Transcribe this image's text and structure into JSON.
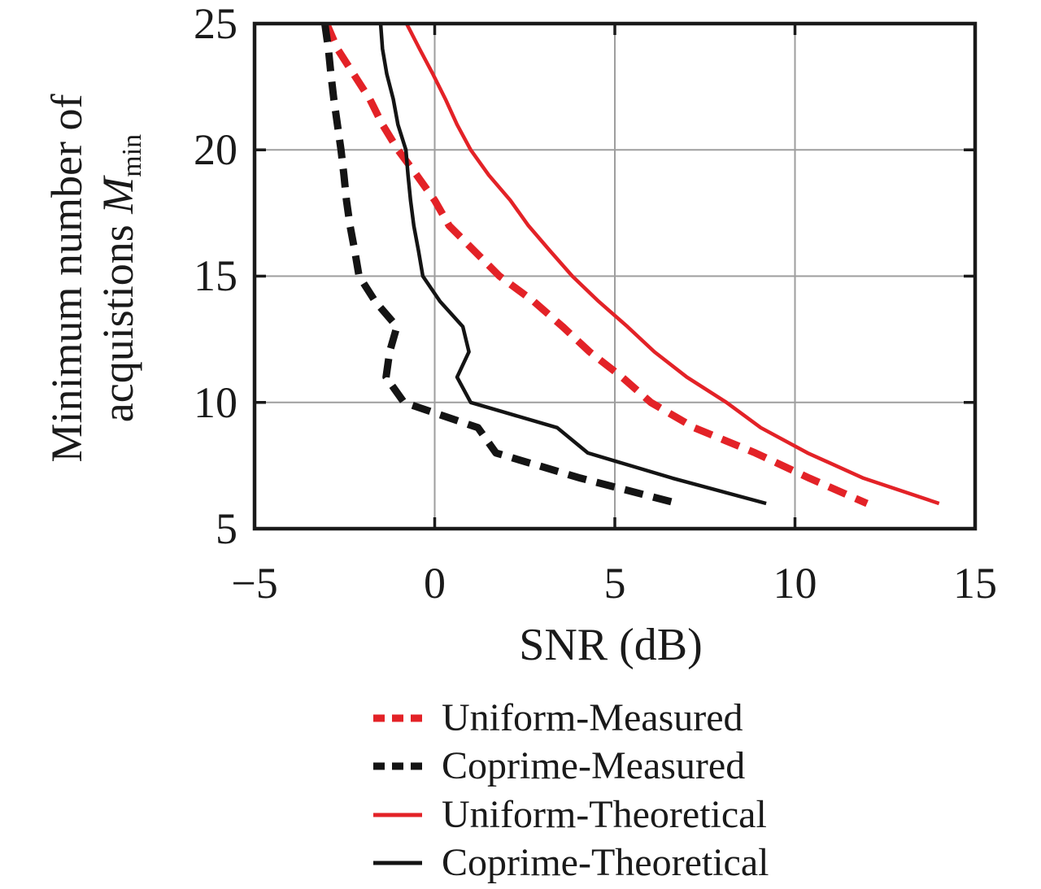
{
  "chart_data": {
    "type": "line",
    "xlabel": "SNR (dB)",
    "ylabel_line1": "Minimum number of",
    "ylabel_line2_prefix": "acquistions ",
    "ylabel_symbol": "M",
    "ylabel_subscript": "min",
    "xlim": [
      -5,
      15
    ],
    "ylim": [
      5,
      25
    ],
    "x_ticks": [
      -5,
      0,
      5,
      10,
      15
    ],
    "y_ticks": [
      5,
      10,
      15,
      20,
      25
    ],
    "x_tick_labels": [
      "−5",
      "0",
      "5",
      "10",
      "15"
    ],
    "y_tick_labels": [
      "25",
      "20",
      "15",
      "10",
      "5"
    ],
    "grid": true,
    "legend_position": "below-axis",
    "colors": {
      "red": "#e32227",
      "black": "#141414",
      "grid": "#9e9e9e",
      "axis": "#1a1a1a",
      "text": "#1a1a1a"
    },
    "m_values": [
      25,
      24,
      23,
      22,
      21,
      20,
      19,
      18,
      17,
      16,
      15,
      14,
      13,
      12,
      11,
      10,
      9,
      8,
      7,
      6
    ],
    "series": [
      {
        "name": "Uniform-Measured",
        "color": "red",
        "style": "dashed",
        "snr_db": [
          -3.0,
          -2.7,
          -2.25,
          -1.8,
          -1.45,
          -1.02,
          -0.5,
          0.0,
          0.4,
          1.1,
          1.8,
          2.75,
          3.55,
          4.3,
          5.2,
          6.0,
          7.2,
          8.9,
          10.4,
          12.0
        ]
      },
      {
        "name": "Coprime-Measured",
        "color": "black",
        "style": "dashed",
        "snr_db": [
          -3.05,
          -2.95,
          -2.88,
          -2.8,
          -2.7,
          -2.6,
          -2.52,
          -2.45,
          -2.35,
          -2.22,
          -2.1,
          -1.65,
          -1.05,
          -1.25,
          -1.35,
          -0.85,
          1.2,
          1.7,
          4.05,
          6.75
        ]
      },
      {
        "name": "Uniform-Theoretical",
        "color": "red",
        "style": "solid",
        "snr_db": [
          -0.78,
          -0.42,
          -0.05,
          0.3,
          0.62,
          1.0,
          1.5,
          2.1,
          2.6,
          3.2,
          3.82,
          4.55,
          5.35,
          6.1,
          7.0,
          8.1,
          9.05,
          10.35,
          11.9,
          14.0
        ]
      },
      {
        "name": "Coprime-Theoretical",
        "color": "black",
        "style": "solid",
        "snr_db": [
          -1.5,
          -1.45,
          -1.33,
          -1.15,
          -1.02,
          -0.8,
          -0.74,
          -0.67,
          -0.58,
          -0.45,
          -0.33,
          0.15,
          0.78,
          0.95,
          0.62,
          1.0,
          3.4,
          4.25,
          6.6,
          9.2
        ]
      }
    ]
  }
}
